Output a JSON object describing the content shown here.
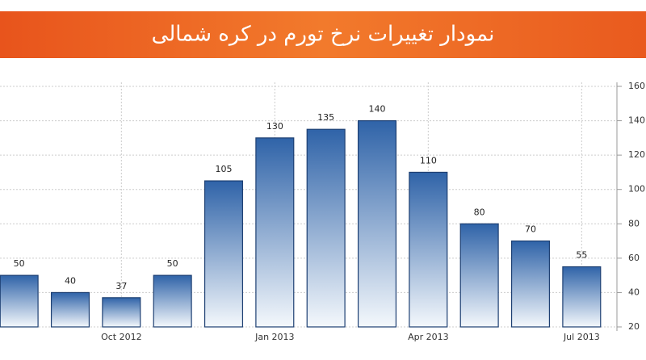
{
  "chart_data": {
    "type": "bar",
    "title": "نمودار تغییرات نرخ تورم در کره شمالی",
    "categories": [
      null,
      null,
      "Oct 2012",
      null,
      null,
      "Jan 2013",
      null,
      null,
      "Apr 2013",
      null,
      null,
      "Jul 2013"
    ],
    "values": [
      50,
      40,
      37,
      50,
      105,
      130,
      135,
      140,
      110,
      80,
      70,
      55
    ],
    "color": "#2f63a8",
    "ylim": [
      20,
      160
    ],
    "yticks": [
      20,
      40,
      60,
      80,
      100,
      120,
      140,
      160
    ],
    "grid": true
  }
}
